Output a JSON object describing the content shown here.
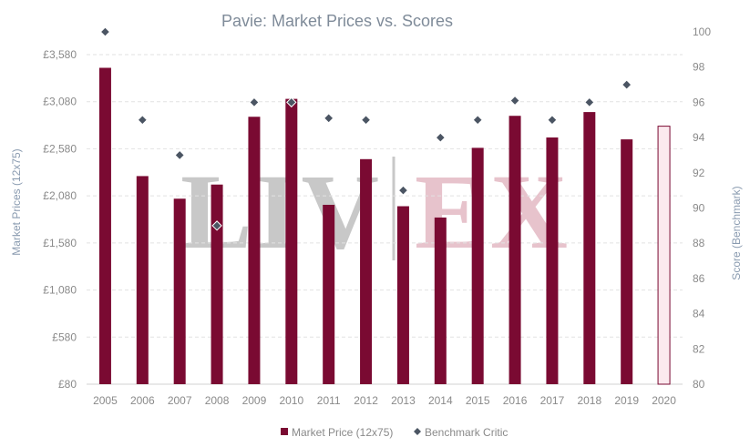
{
  "chart_data": {
    "type": "bar",
    "title": "Pavie: Market Prices vs. Scores",
    "categories": [
      "2005",
      "2006",
      "2007",
      "2008",
      "2009",
      "2010",
      "2011",
      "2012",
      "2013",
      "2014",
      "2015",
      "2016",
      "2017",
      "2018",
      "2019",
      "2020"
    ],
    "series": [
      {
        "name": "Market Price (12x75)",
        "type": "bar",
        "axis": "left",
        "color": "#7a0a32",
        "values": [
          3440,
          2290,
          2050,
          2200,
          2920,
          3110,
          1985,
          2470,
          1970,
          1850,
          2590,
          2930,
          2700,
          2970,
          2680,
          2820
        ],
        "highlight_last": true,
        "highlight_color": "#fbe9ee"
      },
      {
        "name": "Benchmark Critic",
        "type": "scatter",
        "axis": "right",
        "color": "#4b5563",
        "values": [
          100,
          95,
          93,
          89,
          96,
          96,
          95.1,
          95,
          91,
          94,
          95,
          96.1,
          95,
          96,
          97,
          null
        ]
      }
    ],
    "y_left": {
      "label": "Market Prices (12x75)",
      "min": 80,
      "max": 3580,
      "ticks": [
        80,
        580,
        1080,
        1580,
        2080,
        2580,
        3080,
        3580
      ],
      "tick_labels": [
        "£80",
        "£580",
        "£1,080",
        "£1,580",
        "£2,080",
        "£2,580",
        "£3,080",
        "£3,580"
      ]
    },
    "y_right": {
      "label": "Score (Benchmark)",
      "min": 80,
      "max": 100,
      "ticks": [
        80,
        82,
        84,
        86,
        88,
        90,
        92,
        94,
        96,
        98,
        100
      ],
      "tick_labels": [
        "80",
        "82",
        "84",
        "86",
        "88",
        "90",
        "92",
        "94",
        "96",
        "98",
        "100"
      ]
    },
    "grid": "horizontal-dashed",
    "legend": "bottom-center",
    "watermark": {
      "left": "LIV",
      "right": "EX",
      "left_color": "#c8c8c8",
      "right_color": "#e7c3cc"
    }
  }
}
